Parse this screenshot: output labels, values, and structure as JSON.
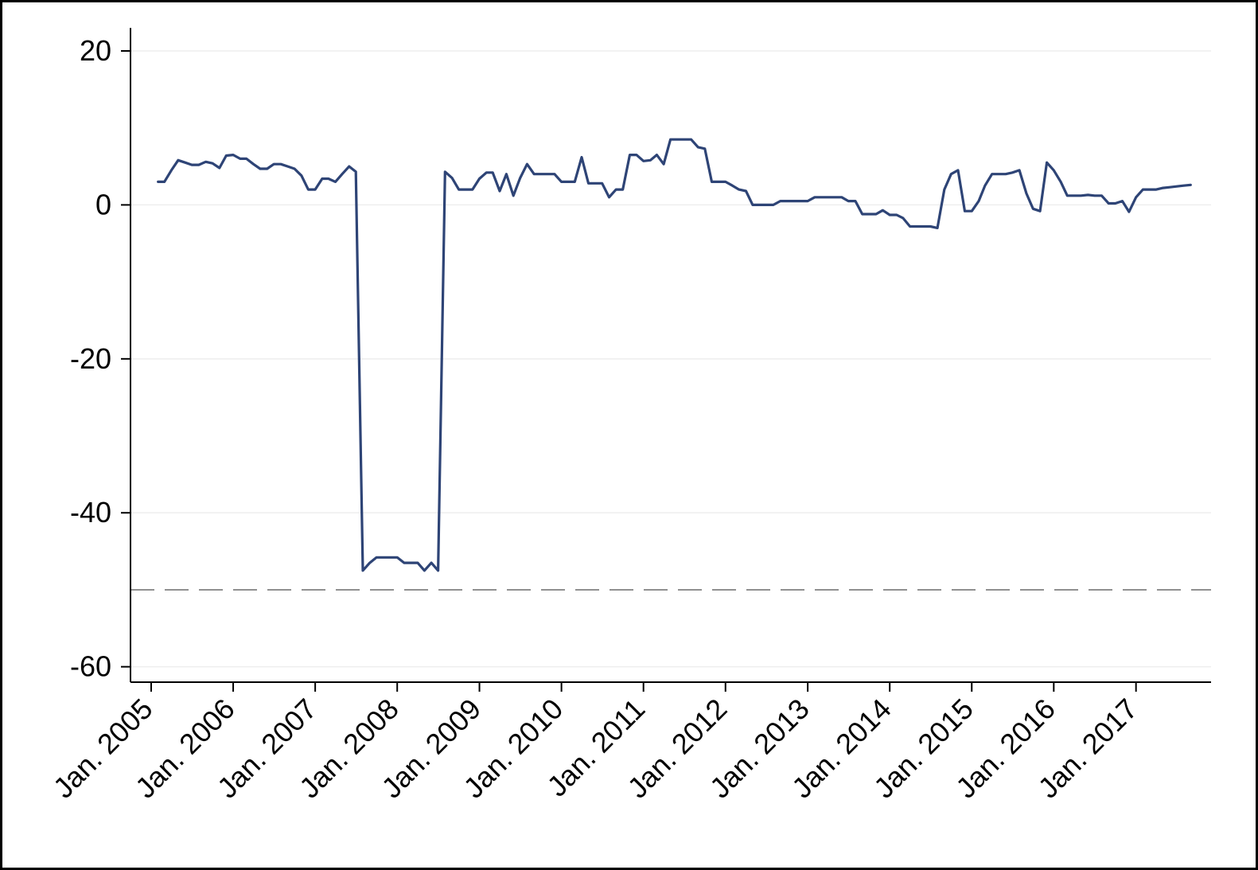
{
  "chart_data": {
    "type": "line",
    "title": "",
    "xlabel": "",
    "ylabel": "",
    "ylim": [
      -62,
      23
    ],
    "xlim": [
      "2004-10-01",
      "2017-12-01"
    ],
    "y_ticks": [
      20,
      0,
      -20,
      -40,
      -60
    ],
    "y_tick_labels": [
      "20",
      "0",
      "-20",
      "-40",
      "-60"
    ],
    "x_ticks": [
      "2005-01-01",
      "2006-01-01",
      "2007-01-01",
      "2008-01-01",
      "2009-01-01",
      "2010-01-01",
      "2011-01-01",
      "2012-01-01",
      "2013-01-01",
      "2014-01-01",
      "2015-01-01",
      "2016-01-01",
      "2017-01-01"
    ],
    "x_tick_labels": [
      "Jan. 2005",
      "Jan. 2006",
      "Jan. 2007",
      "Jan. 2008",
      "Jan. 2009",
      "Jan. 2010",
      "Jan. 2011",
      "Jan. 2012",
      "Jan. 2013",
      "Jan. 2014",
      "Jan. 2015",
      "Jan. 2016",
      "Jan. 2017"
    ],
    "grid": true,
    "reference_line": {
      "y": -50,
      "style": "dashed",
      "color": "#909090"
    },
    "series": [
      {
        "color": "#2e4476",
        "points": [
          [
            "2005-02-01",
            3.0
          ],
          [
            "2005-03-01",
            3.0
          ],
          [
            "2005-04-01",
            4.5
          ],
          [
            "2005-05-01",
            5.8
          ],
          [
            "2005-06-01",
            5.5
          ],
          [
            "2005-07-01",
            5.2
          ],
          [
            "2005-08-01",
            5.2
          ],
          [
            "2005-09-01",
            5.6
          ],
          [
            "2005-10-01",
            5.4
          ],
          [
            "2005-11-01",
            4.8
          ],
          [
            "2005-12-01",
            6.4
          ],
          [
            "2006-01-01",
            6.5
          ],
          [
            "2006-02-01",
            6.0
          ],
          [
            "2006-03-01",
            6.0
          ],
          [
            "2006-04-01",
            5.3
          ],
          [
            "2006-05-01",
            4.7
          ],
          [
            "2006-06-01",
            4.7
          ],
          [
            "2006-07-01",
            5.3
          ],
          [
            "2006-08-01",
            5.3
          ],
          [
            "2006-09-01",
            5.0
          ],
          [
            "2006-10-01",
            4.7
          ],
          [
            "2006-11-01",
            3.8
          ],
          [
            "2006-12-01",
            2.0
          ],
          [
            "2007-01-01",
            2.0
          ],
          [
            "2007-02-01",
            3.4
          ],
          [
            "2007-03-01",
            3.4
          ],
          [
            "2007-04-01",
            3.0
          ],
          [
            "2007-05-01",
            4.0
          ],
          [
            "2007-06-01",
            5.0
          ],
          [
            "2007-07-01",
            4.3
          ],
          [
            "2007-08-01",
            -47.5
          ],
          [
            "2007-09-01",
            -46.5
          ],
          [
            "2007-10-01",
            -45.8
          ],
          [
            "2007-11-01",
            -45.8
          ],
          [
            "2007-12-01",
            -45.8
          ],
          [
            "2008-01-01",
            -45.8
          ],
          [
            "2008-02-01",
            -46.5
          ],
          [
            "2008-03-01",
            -46.5
          ],
          [
            "2008-04-01",
            -46.5
          ],
          [
            "2008-05-01",
            -47.5
          ],
          [
            "2008-06-01",
            -46.5
          ],
          [
            "2008-07-01",
            -47.5
          ],
          [
            "2008-08-01",
            4.3
          ],
          [
            "2008-09-01",
            3.5
          ],
          [
            "2008-10-01",
            2.0
          ],
          [
            "2008-11-01",
            2.0
          ],
          [
            "2008-12-01",
            2.0
          ],
          [
            "2009-01-01",
            3.4
          ],
          [
            "2009-02-01",
            4.2
          ],
          [
            "2009-03-01",
            4.2
          ],
          [
            "2009-04-01",
            1.8
          ],
          [
            "2009-05-01",
            4.0
          ],
          [
            "2009-06-01",
            1.2
          ],
          [
            "2009-07-01",
            3.5
          ],
          [
            "2009-08-01",
            5.3
          ],
          [
            "2009-09-01",
            4.0
          ],
          [
            "2009-10-01",
            4.0
          ],
          [
            "2009-11-01",
            4.0
          ],
          [
            "2009-12-01",
            4.0
          ],
          [
            "2010-01-01",
            3.0
          ],
          [
            "2010-02-01",
            3.0
          ],
          [
            "2010-03-01",
            3.0
          ],
          [
            "2010-04-01",
            6.2
          ],
          [
            "2010-05-01",
            2.8
          ],
          [
            "2010-06-01",
            2.8
          ],
          [
            "2010-07-01",
            2.8
          ],
          [
            "2010-08-01",
            1.0
          ],
          [
            "2010-09-01",
            2.0
          ],
          [
            "2010-10-01",
            2.0
          ],
          [
            "2010-11-01",
            6.5
          ],
          [
            "2010-12-01",
            6.5
          ],
          [
            "2011-01-01",
            5.7
          ],
          [
            "2011-02-01",
            5.8
          ],
          [
            "2011-03-01",
            6.5
          ],
          [
            "2011-04-01",
            5.3
          ],
          [
            "2011-05-01",
            8.5
          ],
          [
            "2011-06-01",
            8.5
          ],
          [
            "2011-07-01",
            8.5
          ],
          [
            "2011-08-01",
            8.5
          ],
          [
            "2011-09-01",
            7.5
          ],
          [
            "2011-10-01",
            7.3
          ],
          [
            "2011-11-01",
            3.0
          ],
          [
            "2011-12-01",
            3.0
          ],
          [
            "2012-01-01",
            3.0
          ],
          [
            "2012-02-01",
            2.5
          ],
          [
            "2012-03-01",
            2.0
          ],
          [
            "2012-04-01",
            1.8
          ],
          [
            "2012-05-01",
            0.0
          ],
          [
            "2012-06-01",
            0.0
          ],
          [
            "2012-07-01",
            0.0
          ],
          [
            "2012-08-01",
            0.0
          ],
          [
            "2012-09-01",
            0.5
          ],
          [
            "2012-10-01",
            0.5
          ],
          [
            "2012-11-01",
            0.5
          ],
          [
            "2012-12-01",
            0.5
          ],
          [
            "2013-01-01",
            0.5
          ],
          [
            "2013-02-01",
            1.0
          ],
          [
            "2013-03-01",
            1.0
          ],
          [
            "2013-04-01",
            1.0
          ],
          [
            "2013-05-01",
            1.0
          ],
          [
            "2013-06-01",
            1.0
          ],
          [
            "2013-07-01",
            0.5
          ],
          [
            "2013-08-01",
            0.5
          ],
          [
            "2013-09-01",
            -1.2
          ],
          [
            "2013-10-01",
            -1.2
          ],
          [
            "2013-11-01",
            -1.2
          ],
          [
            "2013-12-01",
            -0.7
          ],
          [
            "2014-01-01",
            -1.3
          ],
          [
            "2014-02-01",
            -1.3
          ],
          [
            "2014-03-01",
            -1.7
          ],
          [
            "2014-04-01",
            -2.8
          ],
          [
            "2014-05-01",
            -2.8
          ],
          [
            "2014-06-01",
            -2.8
          ],
          [
            "2014-07-01",
            -2.8
          ],
          [
            "2014-08-01",
            -3.0
          ],
          [
            "2014-09-01",
            2.0
          ],
          [
            "2014-10-01",
            4.0
          ],
          [
            "2014-11-01",
            4.5
          ],
          [
            "2014-12-01",
            -0.8
          ],
          [
            "2015-01-01",
            -0.8
          ],
          [
            "2015-02-01",
            0.5
          ],
          [
            "2015-03-01",
            2.5
          ],
          [
            "2015-04-01",
            4.0
          ],
          [
            "2015-05-01",
            4.0
          ],
          [
            "2015-06-01",
            4.0
          ],
          [
            "2015-07-01",
            4.2
          ],
          [
            "2015-08-01",
            4.5
          ],
          [
            "2015-09-01",
            1.5
          ],
          [
            "2015-10-01",
            -0.5
          ],
          [
            "2015-11-01",
            -0.8
          ],
          [
            "2015-12-01",
            5.5
          ],
          [
            "2016-01-01",
            4.5
          ],
          [
            "2016-02-01",
            3.0
          ],
          [
            "2016-03-01",
            1.2
          ],
          [
            "2016-04-01",
            1.2
          ],
          [
            "2016-05-01",
            1.2
          ],
          [
            "2016-06-01",
            1.3
          ],
          [
            "2016-07-01",
            1.2
          ],
          [
            "2016-08-01",
            1.2
          ],
          [
            "2016-09-01",
            0.2
          ],
          [
            "2016-10-01",
            0.2
          ],
          [
            "2016-11-01",
            0.5
          ],
          [
            "2016-12-01",
            -0.9
          ],
          [
            "2017-01-01",
            1.0
          ],
          [
            "2017-02-01",
            2.0
          ],
          [
            "2017-03-01",
            2.0
          ],
          [
            "2017-04-01",
            2.0
          ],
          [
            "2017-05-01",
            2.2
          ],
          [
            "2017-06-01",
            2.3
          ],
          [
            "2017-07-01",
            2.4
          ],
          [
            "2017-08-01",
            2.5
          ],
          [
            "2017-09-01",
            2.6
          ]
        ]
      }
    ]
  }
}
